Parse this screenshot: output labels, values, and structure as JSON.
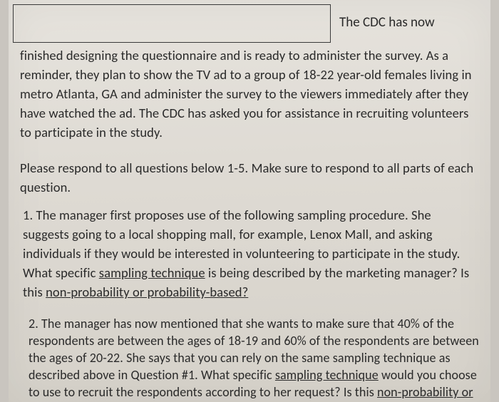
{
  "background_color": "#c9c5bf",
  "page_background_gradient": [
    "#e6e3dd",
    "#dedad3",
    "#d5d1c9"
  ],
  "text_color": "#2a2a2a",
  "font_family": "Calibri",
  "intro": {
    "lead": "The CDC has now",
    "body": "finished designing the questionnaire and is ready to administer the survey.  As a reminder, they plan to show the TV ad to a group of 18-22 year-old females living in metro Atlanta, GA and administer the survey to the viewers immediately after they have watched the ad.  The CDC has asked you for assistance in recruiting volunteers to participate in the study."
  },
  "instruction": {
    "part1": "Please respond to all questions below 1-5.  Make sure to respond to a",
    "cursor_char": "ll",
    "part2": " parts of each question."
  },
  "q1": {
    "line1": "1. The manager first proposes use of the following sampling procedure. She suggests going to a local shopping mall, for example, Lenox Mall, and asking individuals if they would be interested in volunteering to participate in the study.  What specific ",
    "u1": "sampling technique",
    "line2": " is being described by the marketing manager?  Is this ",
    "u2": "non-probability or probability-based?"
  },
  "q2": {
    "line1": "2. The manager has now mentioned that she wants to make sure that 40% of the respondents are between the ages of 18-19 and 60% of the respondents are between the ages of 20-22.  She says that you can rely on the same sampling technique as described above in Question #1.  What specific ",
    "u1": "sampling technique",
    "line2": " would you choose to use to recruit the respondents according to her request?  Is this ",
    "u2": "non-probability or probability-based?"
  }
}
